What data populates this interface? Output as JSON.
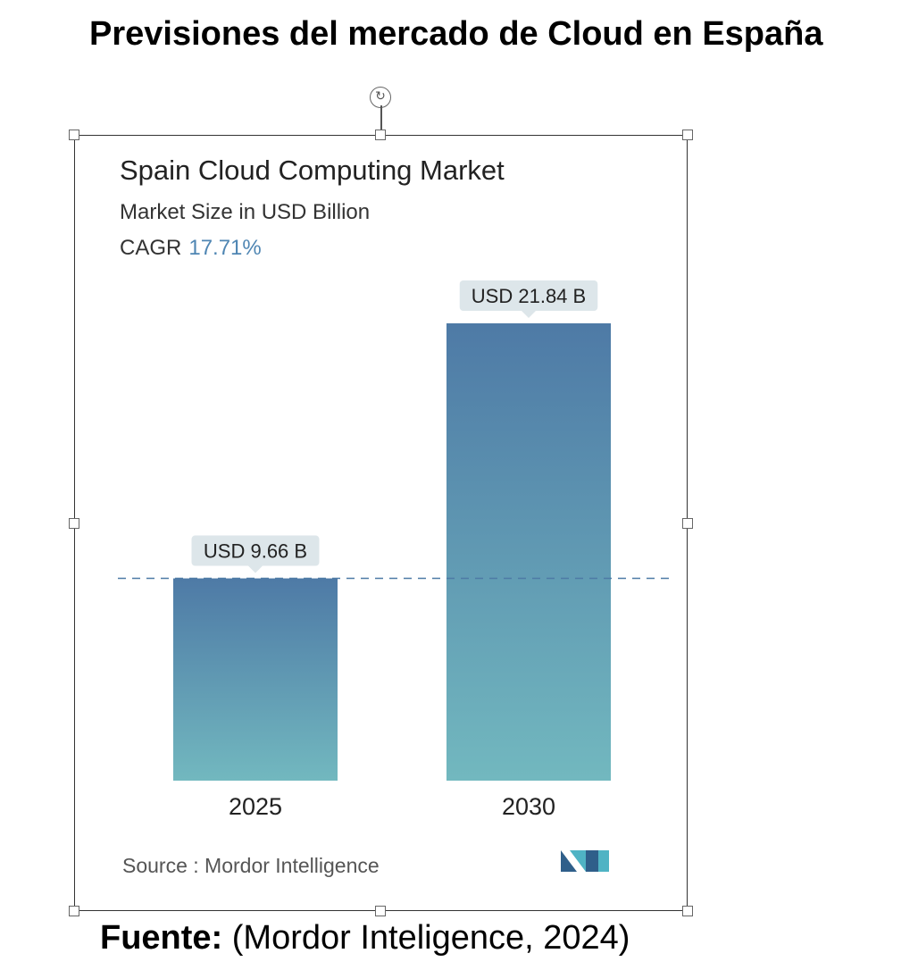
{
  "page": {
    "title": "Previsiones del mercado de Cloud en España",
    "footer_label": "Fuente:",
    "footer_text": " (Mordor Inteligence, 2024)"
  },
  "chart_data": {
    "type": "bar",
    "title": "Spain Cloud Computing Market",
    "subtitle": "Market Size in USD Billion",
    "cagr_label": "CAGR",
    "cagr_value": "17.71%",
    "categories": [
      "2025",
      "2030"
    ],
    "values": [
      9.66,
      21.84
    ],
    "data_labels": [
      "USD 9.66 B",
      "USD 21.84 B"
    ],
    "source_text": "Source :  Mordor Intelligence",
    "logo_letters": "MN",
    "colors": {
      "bar_top": "#4e7aa6",
      "bar_bottom": "#72b8bf",
      "label_bg": "#dde6ea",
      "cagr": "#4f86b3",
      "reference_line": "#4e7aa6",
      "logo_dark": "#2f5f8a",
      "logo_light": "#4fb3c4"
    }
  }
}
